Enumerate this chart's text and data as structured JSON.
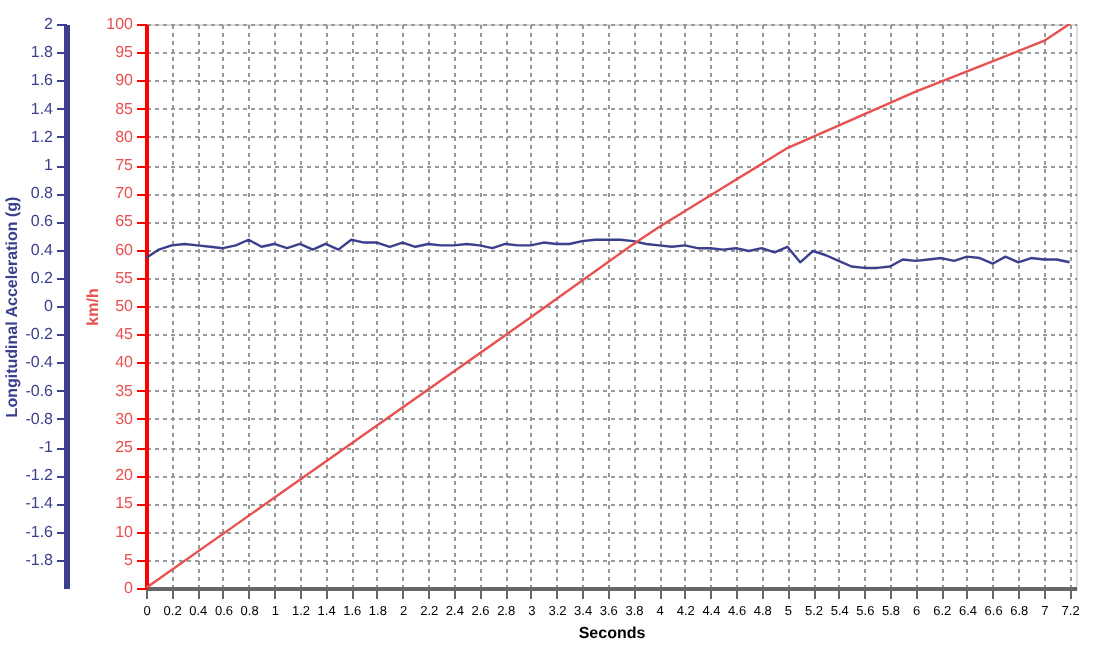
{
  "chart_data": {
    "type": "line",
    "xlabel": "Seconds",
    "ylabel": "Longitudinal Acceleration (g)",
    "y2label": "km/h",
    "xlim": [
      0,
      7.25
    ],
    "xticks": [
      0,
      0.2,
      0.4,
      0.6,
      0.8,
      1,
      1.2,
      1.4,
      1.6,
      1.8,
      2,
      2.2,
      2.4,
      2.6,
      2.8,
      3,
      3.2,
      3.4,
      3.6,
      3.8,
      4,
      4.2,
      4.4,
      4.6,
      4.8,
      5,
      5.2,
      5.4,
      5.6,
      5.8,
      6,
      6.2,
      6.4,
      6.6,
      6.8,
      7,
      7.2
    ],
    "ylim": [
      -2,
      2
    ],
    "yticks": [
      -1.8,
      -1.6,
      -1.4,
      -1.2,
      -1,
      -0.8,
      -0.6,
      -0.4,
      -0.2,
      0,
      0.2,
      0.4,
      0.6,
      0.8,
      1,
      1.2,
      1.4,
      1.6,
      1.8,
      2
    ],
    "y2lim": [
      0,
      100
    ],
    "y2ticks": [
      0,
      5,
      10,
      15,
      20,
      25,
      30,
      35,
      40,
      45,
      50,
      55,
      60,
      65,
      70,
      75,
      80,
      85,
      90,
      95,
      100
    ],
    "grid": true,
    "marker": "none",
    "line_style": "solid",
    "series": [
      {
        "color": "#3b3f8c",
        "axis": "y",
        "x": [
          0,
          0.1,
          0.2,
          0.3,
          0.4,
          0.5,
          0.6,
          0.7,
          0.8,
          0.9,
          1,
          1.1,
          1.2,
          1.3,
          1.4,
          1.5,
          1.6,
          1.7,
          1.8,
          1.9,
          2,
          2.1,
          2.2,
          2.3,
          2.4,
          2.5,
          2.6,
          2.7,
          2.8,
          2.9,
          3,
          3.1,
          3.2,
          3.3,
          3.4,
          3.5,
          3.6,
          3.7,
          3.8,
          3.9,
          4,
          4.1,
          4.2,
          4.3,
          4.4,
          4.5,
          4.6,
          4.7,
          4.8,
          4.9,
          5,
          5.1,
          5.2,
          5.3,
          5.4,
          5.5,
          5.6,
          5.7,
          5.8,
          5.9,
          6,
          6.1,
          6.2,
          6.3,
          6.4,
          6.5,
          6.6,
          6.7,
          6.8,
          6.9,
          7,
          7.1,
          7.2
        ],
        "values": [
          0.34,
          0.4,
          0.43,
          0.44,
          0.43,
          0.42,
          0.41,
          0.43,
          0.47,
          0.42,
          0.44,
          0.41,
          0.44,
          0.4,
          0.44,
          0.4,
          0.47,
          0.45,
          0.45,
          0.42,
          0.45,
          0.42,
          0.44,
          0.43,
          0.43,
          0.44,
          0.43,
          0.41,
          0.44,
          0.43,
          0.43,
          0.45,
          0.44,
          0.44,
          0.46,
          0.47,
          0.47,
          0.47,
          0.46,
          0.44,
          0.43,
          0.42,
          0.43,
          0.41,
          0.41,
          0.4,
          0.41,
          0.39,
          0.41,
          0.38,
          0.42,
          0.31,
          0.39,
          0.36,
          0.32,
          0.28,
          0.27,
          0.27,
          0.28,
          0.33,
          0.32,
          0.33,
          0.34,
          0.32,
          0.35,
          0.34,
          0.3,
          0.35,
          0.31,
          0.34,
          0.33,
          0.33,
          0.31
        ]
      },
      {
        "color": "#e8504f",
        "axis": "y2",
        "x": [
          0,
          1,
          2,
          3,
          3.8,
          4,
          4.5,
          5,
          5.5,
          6,
          6.5,
          7,
          7.2
        ],
        "values": [
          0,
          16,
          32,
          48,
          61,
          64,
          71,
          78,
          83,
          88,
          92.5,
          97,
          100
        ]
      }
    ]
  }
}
